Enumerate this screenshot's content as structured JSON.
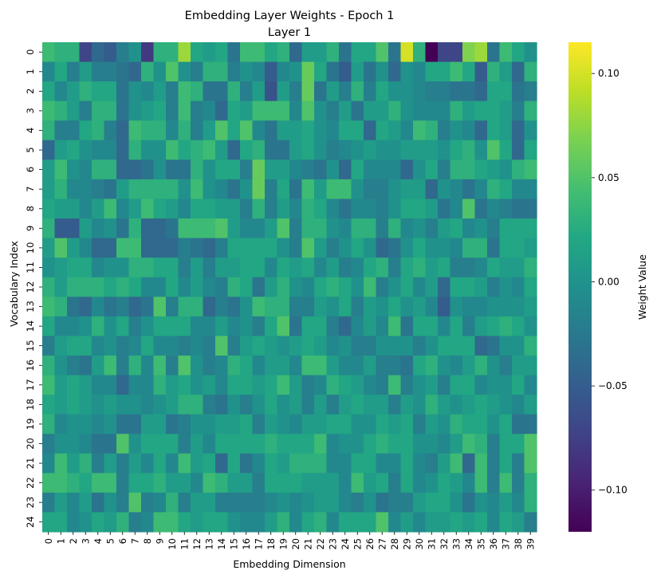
{
  "chart_data": {
    "type": "heatmap",
    "title": "Embedding Layer Weights - Epoch 1",
    "subtitle": "Layer 1",
    "xlabel": "Embedding Dimension",
    "ylabel": "Vocabulary Index",
    "colorbar_label": "Weight Value",
    "colormap": "viridis",
    "vmin": -0.12,
    "vmax": 0.115,
    "colorbar_ticks": [
      {
        "value": 0.1,
        "label": "0.10"
      },
      {
        "value": 0.05,
        "label": "0.05"
      },
      {
        "value": 0.0,
        "label": "0.00"
      },
      {
        "value": -0.05,
        "label": "−0.05"
      },
      {
        "value": -0.1,
        "label": "−0.10"
      }
    ],
    "x_categories": [
      "0",
      "1",
      "2",
      "3",
      "4",
      "5",
      "6",
      "7",
      "8",
      "9",
      "10",
      "11",
      "12",
      "13",
      "14",
      "15",
      "16",
      "17",
      "18",
      "19",
      "20",
      "21",
      "22",
      "23",
      "24",
      "25",
      "26",
      "27",
      "28",
      "29",
      "30",
      "31",
      "32",
      "33",
      "34",
      "35",
      "36",
      "37",
      "38",
      "39"
    ],
    "y_categories": [
      "0",
      "1",
      "2",
      "3",
      "4",
      "5",
      "6",
      "7",
      "8",
      "9",
      "10",
      "11",
      "12",
      "13",
      "14",
      "15",
      "16",
      "17",
      "18",
      "19",
      "20",
      "21",
      "22",
      "23",
      "24"
    ],
    "values": [
      [
        0.04,
        0.03,
        0.03,
        -0.07,
        -0.04,
        -0.05,
        -0.02,
        0.0,
        -0.08,
        0.03,
        0.03,
        0.08,
        0.02,
        0.01,
        0.02,
        -0.03,
        0.04,
        0.04,
        0.02,
        0.03,
        -0.04,
        0.01,
        0.01,
        0.03,
        -0.03,
        0.02,
        0.02,
        0.05,
        -0.03,
        0.1,
        0.03,
        -0.12,
        -0.07,
        -0.07,
        0.07,
        0.08,
        -0.03,
        0.04,
        0.02,
        0.0
      ],
      [
        -0.01,
        0.02,
        -0.02,
        0.01,
        -0.02,
        -0.02,
        -0.03,
        -0.04,
        0.03,
        0.0,
        0.05,
        0.0,
        -0.02,
        0.03,
        0.03,
        -0.02,
        0.0,
        -0.01,
        -0.05,
        -0.01,
        0.0,
        0.06,
        0.02,
        -0.03,
        -0.05,
        0.01,
        -0.03,
        0.0,
        -0.04,
        0.0,
        -0.01,
        0.02,
        0.02,
        0.04,
        0.02,
        -0.05,
        0.03,
        0.01,
        -0.04,
        0.03
      ],
      [
        0.02,
        -0.01,
        0.01,
        0.03,
        0.02,
        0.02,
        -0.03,
        0.0,
        -0.01,
        0.01,
        -0.02,
        0.04,
        0.03,
        -0.03,
        -0.03,
        0.03,
        -0.02,
        0.01,
        -0.06,
        0.01,
        -0.02,
        0.06,
        -0.03,
        0.01,
        -0.02,
        0.03,
        -0.02,
        0.02,
        0.0,
        0.0,
        -0.01,
        -0.02,
        -0.02,
        -0.03,
        -0.03,
        -0.04,
        0.02,
        0.02,
        -0.03,
        -0.02
      ],
      [
        0.04,
        0.03,
        0.01,
        -0.02,
        0.03,
        0.03,
        -0.03,
        0.0,
        0.01,
        0.02,
        -0.02,
        0.04,
        -0.02,
        -0.01,
        -0.04,
        0.02,
        0.01,
        0.04,
        0.04,
        0.04,
        -0.01,
        0.05,
        0.0,
        -0.02,
        0.01,
        -0.03,
        0.01,
        0.01,
        0.03,
        0.0,
        -0.01,
        -0.01,
        -0.01,
        0.03,
        0.01,
        0.02,
        0.02,
        0.01,
        -0.02,
        0.03
      ],
      [
        0.03,
        -0.02,
        -0.02,
        0.02,
        0.03,
        -0.02,
        -0.04,
        0.04,
        0.03,
        0.03,
        -0.01,
        0.03,
        -0.02,
        0.01,
        0.05,
        0.02,
        0.05,
        -0.01,
        -0.03,
        0.01,
        0.01,
        0.02,
        0.0,
        -0.01,
        0.02,
        0.02,
        -0.04,
        0.02,
        0.01,
        -0.01,
        0.04,
        0.03,
        -0.02,
        0.0,
        -0.01,
        -0.04,
        0.02,
        0.01,
        -0.04,
        0.0
      ],
      [
        -0.04,
        0.01,
        0.02,
        0.0,
        -0.01,
        -0.01,
        -0.04,
        0.03,
        0.0,
        0.0,
        0.04,
        0.02,
        0.03,
        0.04,
        0.01,
        -0.04,
        0.02,
        0.03,
        -0.03,
        -0.03,
        0.01,
        0.02,
        0.0,
        -0.02,
        -0.01,
        0.0,
        0.01,
        0.0,
        0.0,
        0.01,
        0.01,
        0.01,
        0.0,
        0.02,
        0.03,
        0.0,
        0.05,
        0.02,
        -0.04,
        0.02
      ],
      [
        0.01,
        0.04,
        0.0,
        -0.01,
        0.03,
        0.03,
        -0.04,
        -0.04,
        -0.03,
        0.0,
        -0.03,
        -0.03,
        0.03,
        0.0,
        0.02,
        0.02,
        -0.02,
        0.06,
        0.01,
        0.01,
        -0.01,
        -0.02,
        -0.03,
        0.0,
        -0.04,
        0.02,
        -0.01,
        -0.01,
        -0.01,
        -0.04,
        0.0,
        0.02,
        -0.02,
        0.03,
        0.03,
        0.02,
        0.01,
        0.0,
        0.03,
        0.04
      ],
      [
        0.01,
        0.03,
        -0.01,
        -0.01,
        -0.02,
        -0.03,
        0.01,
        0.03,
        0.03,
        0.03,
        0.03,
        0.0,
        0.04,
        0.0,
        -0.01,
        -0.03,
        0.0,
        0.06,
        -0.02,
        0.02,
        -0.03,
        0.04,
        0.01,
        0.04,
        0.04,
        0.0,
        -0.02,
        -0.02,
        0.0,
        0.01,
        0.01,
        -0.04,
        0.0,
        -0.01,
        -0.03,
        -0.01,
        0.03,
        0.02,
        -0.01,
        -0.01
      ],
      [
        0.02,
        0.01,
        0.01,
        -0.01,
        0.01,
        0.04,
        -0.01,
        0.01,
        0.04,
        0.02,
        0.01,
        -0.01,
        0.02,
        0.02,
        0.01,
        0.01,
        -0.02,
        0.03,
        -0.02,
        0.01,
        -0.01,
        0.03,
        0.02,
        -0.01,
        -0.03,
        -0.01,
        -0.01,
        -0.02,
        0.0,
        0.02,
        0.02,
        0.01,
        -0.03,
        -0.01,
        0.05,
        -0.03,
        -0.01,
        -0.02,
        -0.03,
        -0.03
      ],
      [
        0.03,
        -0.05,
        -0.05,
        0.01,
        -0.01,
        0.0,
        -0.03,
        0.03,
        -0.04,
        -0.04,
        -0.03,
        0.04,
        0.04,
        0.04,
        0.05,
        0.01,
        -0.01,
        -0.01,
        0.01,
        0.05,
        -0.02,
        0.03,
        0.03,
        0.0,
        -0.01,
        0.03,
        0.03,
        -0.02,
        0.03,
        -0.01,
        0.0,
        -0.02,
        0.01,
        0.02,
        -0.01,
        0.0,
        -0.02,
        0.02,
        0.02,
        0.02
      ],
      [
        0.01,
        0.05,
        0.01,
        -0.01,
        -0.04,
        -0.04,
        0.04,
        0.04,
        -0.04,
        -0.04,
        -0.04,
        -0.02,
        -0.03,
        -0.04,
        -0.02,
        0.02,
        0.02,
        0.02,
        0.02,
        0.0,
        -0.02,
        0.05,
        0.01,
        -0.02,
        0.0,
        0.02,
        0.0,
        -0.04,
        -0.03,
        0.0,
        0.02,
        0.0,
        0.0,
        -0.01,
        0.03,
        0.03,
        -0.03,
        0.02,
        0.02,
        0.01
      ],
      [
        0.0,
        0.01,
        0.02,
        0.02,
        -0.01,
        0.0,
        0.0,
        0.03,
        0.03,
        0.02,
        0.02,
        -0.02,
        0.01,
        -0.02,
        0.01,
        0.01,
        0.02,
        0.02,
        -0.01,
        0.02,
        0.01,
        0.02,
        -0.01,
        0.01,
        -0.02,
        -0.01,
        0.02,
        0.03,
        -0.02,
        0.02,
        0.03,
        0.01,
        0.02,
        -0.02,
        -0.02,
        -0.01,
        0.02,
        0.01,
        0.01,
        0.03
      ],
      [
        0.03,
        0.01,
        0.03,
        0.03,
        0.03,
        0.02,
        0.03,
        0.02,
        -0.01,
        -0.01,
        0.02,
        -0.01,
        0.01,
        -0.01,
        -0.02,
        0.03,
        0.02,
        -0.03,
        0.01,
        0.03,
        0.0,
        -0.01,
        0.02,
        0.03,
        0.02,
        0.0,
        0.04,
        -0.02,
        0.0,
        0.02,
        -0.01,
        0.01,
        -0.04,
        0.02,
        0.02,
        0.01,
        -0.02,
        0.0,
        -0.01,
        0.02
      ],
      [
        0.04,
        0.03,
        -0.03,
        -0.04,
        -0.01,
        -0.03,
        -0.02,
        -0.04,
        -0.03,
        0.05,
        -0.02,
        0.03,
        0.03,
        -0.04,
        -0.02,
        -0.03,
        0.0,
        0.04,
        0.03,
        0.03,
        -0.02,
        -0.02,
        0.01,
        0.0,
        0.02,
        -0.02,
        0.01,
        0.0,
        0.02,
        0.0,
        0.01,
        -0.01,
        -0.05,
        0.0,
        -0.01,
        -0.01,
        0.0,
        0.0,
        0.0,
        0.01
      ],
      [
        0.02,
        -0.01,
        -0.01,
        0.0,
        0.03,
        0.0,
        0.02,
        -0.02,
        0.0,
        0.02,
        0.02,
        0.02,
        -0.01,
        -0.01,
        0.01,
        -0.01,
        0.0,
        -0.02,
        0.02,
        0.05,
        -0.03,
        0.02,
        0.02,
        -0.02,
        -0.04,
        -0.01,
        0.01,
        -0.01,
        0.04,
        -0.03,
        0.02,
        0.02,
        -0.01,
        0.02,
        -0.02,
        0.01,
        0.02,
        0.03,
        0.02,
        0.0
      ],
      [
        -0.02,
        0.01,
        0.02,
        0.02,
        -0.01,
        0.0,
        -0.02,
        -0.01,
        0.02,
        -0.01,
        -0.01,
        -0.02,
        -0.01,
        -0.02,
        0.05,
        -0.02,
        0.01,
        0.02,
        0.01,
        0.0,
        0.01,
        0.02,
        0.01,
        -0.01,
        0.0,
        -0.02,
        -0.02,
        0.0,
        0.0,
        0.0,
        -0.02,
        0.0,
        0.02,
        0.02,
        0.02,
        -0.04,
        -0.03,
        0.0,
        0.0,
        0.03
      ],
      [
        0.03,
        0.0,
        -0.02,
        -0.03,
        0.01,
        0.04,
        -0.02,
        0.03,
        -0.01,
        0.04,
        -0.02,
        0.05,
        0.0,
        -0.02,
        -0.01,
        0.03,
        0.02,
        -0.01,
        0.01,
        0.01,
        -0.01,
        0.04,
        0.04,
        0.01,
        -0.01,
        -0.01,
        0.01,
        -0.02,
        -0.02,
        -0.03,
        0.02,
        0.03,
        0.0,
        -0.01,
        0.01,
        0.03,
        0.0,
        -0.02,
        0.01,
        0.01
      ],
      [
        0.04,
        0.01,
        0.02,
        0.01,
        -0.01,
        -0.01,
        -0.04,
        -0.01,
        -0.01,
        0.03,
        0.01,
        0.02,
        0.0,
        0.01,
        -0.01,
        0.02,
        0.02,
        0.01,
        0.02,
        0.04,
        0.01,
        -0.02,
        -0.01,
        0.03,
        0.02,
        0.01,
        -0.01,
        -0.02,
        0.04,
        -0.02,
        0.0,
        0.01,
        -0.02,
        0.02,
        0.02,
        -0.01,
        0.0,
        0.0,
        0.02,
        -0.01
      ],
      [
        0.02,
        0.01,
        0.02,
        0.01,
        0.0,
        0.01,
        0.0,
        0.0,
        -0.01,
        0.0,
        0.01,
        0.03,
        0.03,
        -0.02,
        -0.03,
        0.0,
        -0.02,
        0.0,
        0.02,
        0.0,
        0.01,
        -0.02,
        0.01,
        -0.02,
        0.01,
        0.02,
        0.01,
        0.01,
        -0.02,
        0.01,
        0.0,
        0.03,
        0.01,
        0.0,
        0.01,
        0.02,
        0.01,
        0.0,
        -0.01,
        0.01
      ],
      [
        0.03,
        -0.01,
        0.0,
        0.0,
        -0.01,
        0.0,
        -0.03,
        -0.03,
        0.01,
        0.01,
        -0.03,
        -0.02,
        0.0,
        0.0,
        0.01,
        0.01,
        0.02,
        -0.02,
        0.01,
        0.0,
        -0.01,
        0.01,
        0.01,
        0.02,
        0.02,
        0.0,
        0.0,
        0.02,
        0.01,
        0.02,
        -0.02,
        0.01,
        0.0,
        0.03,
        0.02,
        0.02,
        0.0,
        0.02,
        -0.03,
        -0.03
      ],
      [
        -0.02,
        0.0,
        0.0,
        -0.01,
        -0.03,
        -0.03,
        0.05,
        0.0,
        0.02,
        0.02,
        0.02,
        -0.02,
        0.01,
        -0.01,
        0.02,
        0.02,
        0.02,
        0.02,
        0.03,
        0.02,
        0.02,
        0.02,
        0.04,
        -0.01,
        0.0,
        0.0,
        0.02,
        0.03,
        0.02,
        0.02,
        0.0,
        0.0,
        -0.01,
        0.01,
        0.04,
        0.03,
        -0.02,
        0.02,
        0.02,
        0.05
      ],
      [
        -0.01,
        0.04,
        0.01,
        0.03,
        -0.02,
        0.01,
        -0.02,
        0.01,
        -0.01,
        0.02,
        -0.01,
        0.04,
        0.01,
        0.02,
        -0.04,
        0.02,
        -0.03,
        -0.01,
        0.02,
        0.01,
        0.03,
        0.03,
        0.03,
        -0.01,
        -0.01,
        0.02,
        0.02,
        -0.01,
        -0.01,
        0.02,
        -0.01,
        -0.02,
        0.01,
        0.04,
        -0.04,
        0.04,
        -0.02,
        0.02,
        -0.02,
        0.05
      ],
      [
        0.04,
        0.04,
        0.03,
        0.02,
        0.04,
        0.04,
        -0.02,
        0.02,
        0.02,
        0.03,
        0.01,
        0.01,
        -0.01,
        0.04,
        0.03,
        0.01,
        0.01,
        -0.02,
        0.02,
        0.02,
        0.02,
        0.01,
        0.01,
        0.01,
        -0.01,
        0.04,
        0.01,
        0.02,
        -0.02,
        0.02,
        -0.01,
        0.0,
        0.02,
        0.01,
        -0.01,
        0.04,
        -0.02,
        0.04,
        -0.02,
        0.03
      ],
      [
        -0.02,
        0.01,
        -0.01,
        0.01,
        -0.03,
        0.0,
        -0.02,
        0.05,
        -0.02,
        -0.01,
        0.03,
        -0.02,
        0.01,
        0.01,
        -0.02,
        -0.02,
        -0.02,
        -0.02,
        -0.01,
        0.0,
        -0.01,
        0.0,
        0.01,
        0.01,
        -0.01,
        -0.02,
        0.0,
        -0.03,
        -0.02,
        -0.02,
        0.01,
        0.02,
        0.02,
        0.0,
        -0.03,
        0.0,
        -0.01,
        0.01,
        -0.01,
        0.03
      ],
      [
        0.02,
        0.02,
        -0.01,
        0.0,
        0.02,
        0.01,
        0.03,
        -0.02,
        -0.01,
        0.04,
        0.04,
        0.02,
        0.01,
        0.02,
        0.02,
        0.0,
        -0.01,
        -0.01,
        0.01,
        0.03,
        -0.01,
        0.02,
        0.03,
        -0.01,
        0.02,
        0.02,
        0.02,
        0.05,
        -0.01,
        0.01,
        -0.01,
        0.01,
        0.01,
        0.02,
        0.01,
        0.02,
        -0.01,
        0.02,
        0.01,
        -0.02
      ]
    ]
  }
}
